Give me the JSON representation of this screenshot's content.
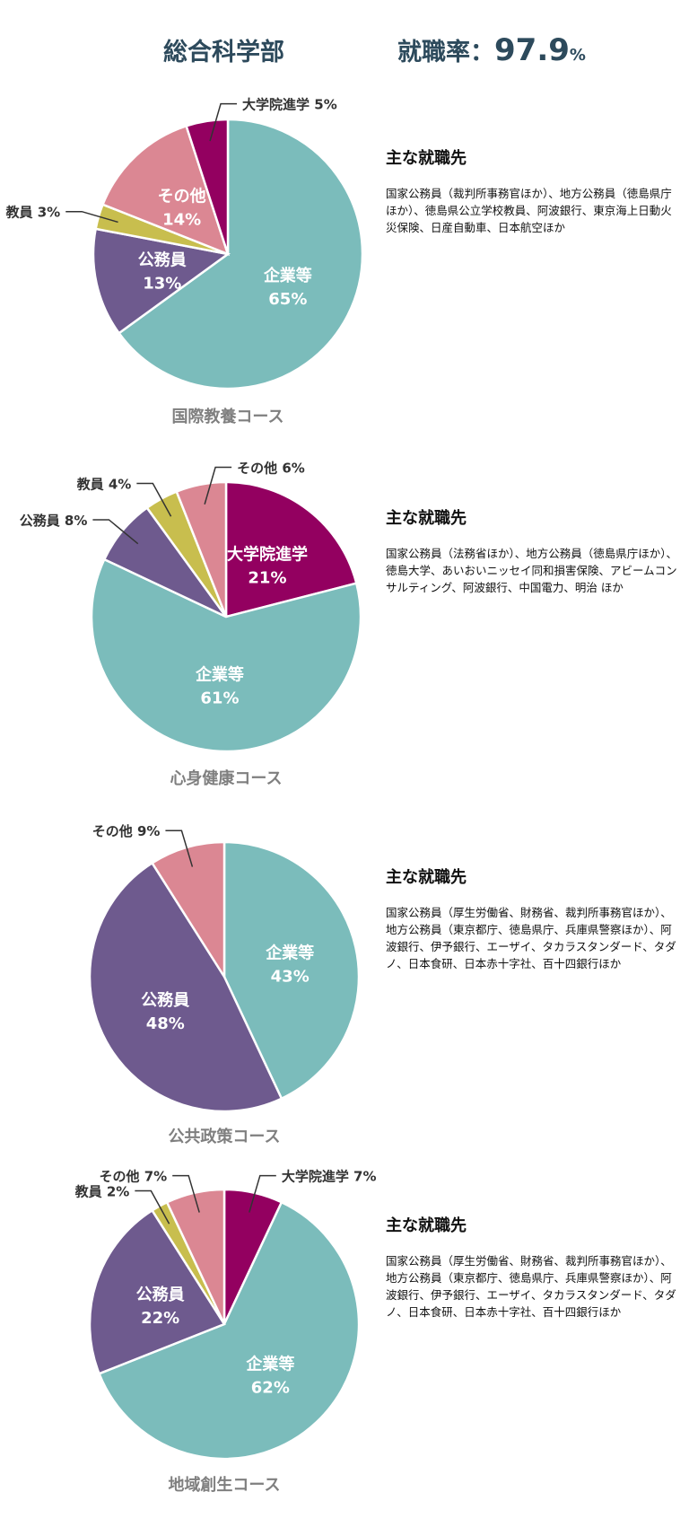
{
  "header": {
    "faculty": "総合科学部",
    "rate_label": "就職率：",
    "rate_value": "97.9",
    "rate_unit": "%"
  },
  "colors": {
    "title": "#2d4a5c",
    "companies": "#7bbcbb",
    "civil": "#6e5a8e",
    "teacher": "#c8be4e",
    "other": "#db8793",
    "grad": "#930060"
  },
  "chart_data": [
    {
      "type": "pie",
      "title": "国際教養コース",
      "slices": [
        {
          "label": "企業等",
          "value": 65,
          "color": "#7bbcbb",
          "inside": true
        },
        {
          "label": "公務員",
          "value": 13,
          "color": "#6e5a8e",
          "inside": true
        },
        {
          "label": "教員",
          "value": 3,
          "color": "#c8be4e",
          "inside": false
        },
        {
          "label": "その他",
          "value": 14,
          "color": "#db8793",
          "inside": true
        },
        {
          "label": "大学院進学",
          "value": 5,
          "color": "#930060",
          "inside": false
        }
      ]
    },
    {
      "type": "pie",
      "title": "心身健康コース",
      "slices": [
        {
          "label": "大学院進学",
          "value": 21,
          "color": "#930060",
          "inside": true
        },
        {
          "label": "企業等",
          "value": 61,
          "color": "#7bbcbb",
          "inside": true
        },
        {
          "label": "公務員",
          "value": 8,
          "color": "#6e5a8e",
          "inside": false
        },
        {
          "label": "教員",
          "value": 4,
          "color": "#c8be4e",
          "inside": false
        },
        {
          "label": "その他",
          "value": 6,
          "color": "#db8793",
          "inside": false
        }
      ]
    },
    {
      "type": "pie",
      "title": "公共政策コース",
      "slices": [
        {
          "label": "企業等",
          "value": 43,
          "color": "#7bbcbb",
          "inside": true
        },
        {
          "label": "公務員",
          "value": 48,
          "color": "#6e5a8e",
          "inside": true
        },
        {
          "label": "その他",
          "value": 9,
          "color": "#db8793",
          "inside": false
        }
      ]
    },
    {
      "type": "pie",
      "title": "地域創生コース",
      "slices": [
        {
          "label": "大学院進学",
          "value": 7,
          "color": "#930060",
          "inside": false
        },
        {
          "label": "企業等",
          "value": 62,
          "color": "#7bbcbb",
          "inside": true
        },
        {
          "label": "公務員",
          "value": 22,
          "color": "#6e5a8e",
          "inside": true
        },
        {
          "label": "教員",
          "value": 2,
          "color": "#c8be4e",
          "inside": false
        },
        {
          "label": "その他",
          "value": 7,
          "color": "#db8793",
          "inside": false
        }
      ]
    }
  ],
  "employers": [
    {
      "heading": "主な就職先",
      "text": "国家公務員（裁判所事務官ほか）、地方公務員（徳島県庁ほか）、徳島県公立学校教員、阿波銀行、東京海上日動火災保険、日産自動車、日本航空ほか"
    },
    {
      "heading": "主な就職先",
      "text": "国家公務員（法務省ほか）、地方公務員（徳島県庁ほか）、徳島大学、あいおいニッセイ同和損害保険、アビームコンサルティング、阿波銀行、中国電力、明治 ほか"
    },
    {
      "heading": "主な就職先",
      "text": "国家公務員（厚生労働省、財務省、裁判所事務官ほか）、地方公務員（東京都庁、徳島県庁、兵庫県警察ほか）、阿波銀行、伊予銀行、エーザイ、タカラスタンダード、タダノ、日本食研、日本赤十字社、百十四銀行ほか"
    },
    {
      "heading": "主な就職先",
      "text": "国家公務員（厚生労働省、財務省、裁判所事務官ほか）、地方公務員（東京都庁、徳島県庁、兵庫県警察ほか）、阿波銀行、伊予銀行、エーザイ、タカラスタンダード、タダノ、日本食研、日本赤十字社、百十四銀行ほか"
    }
  ]
}
